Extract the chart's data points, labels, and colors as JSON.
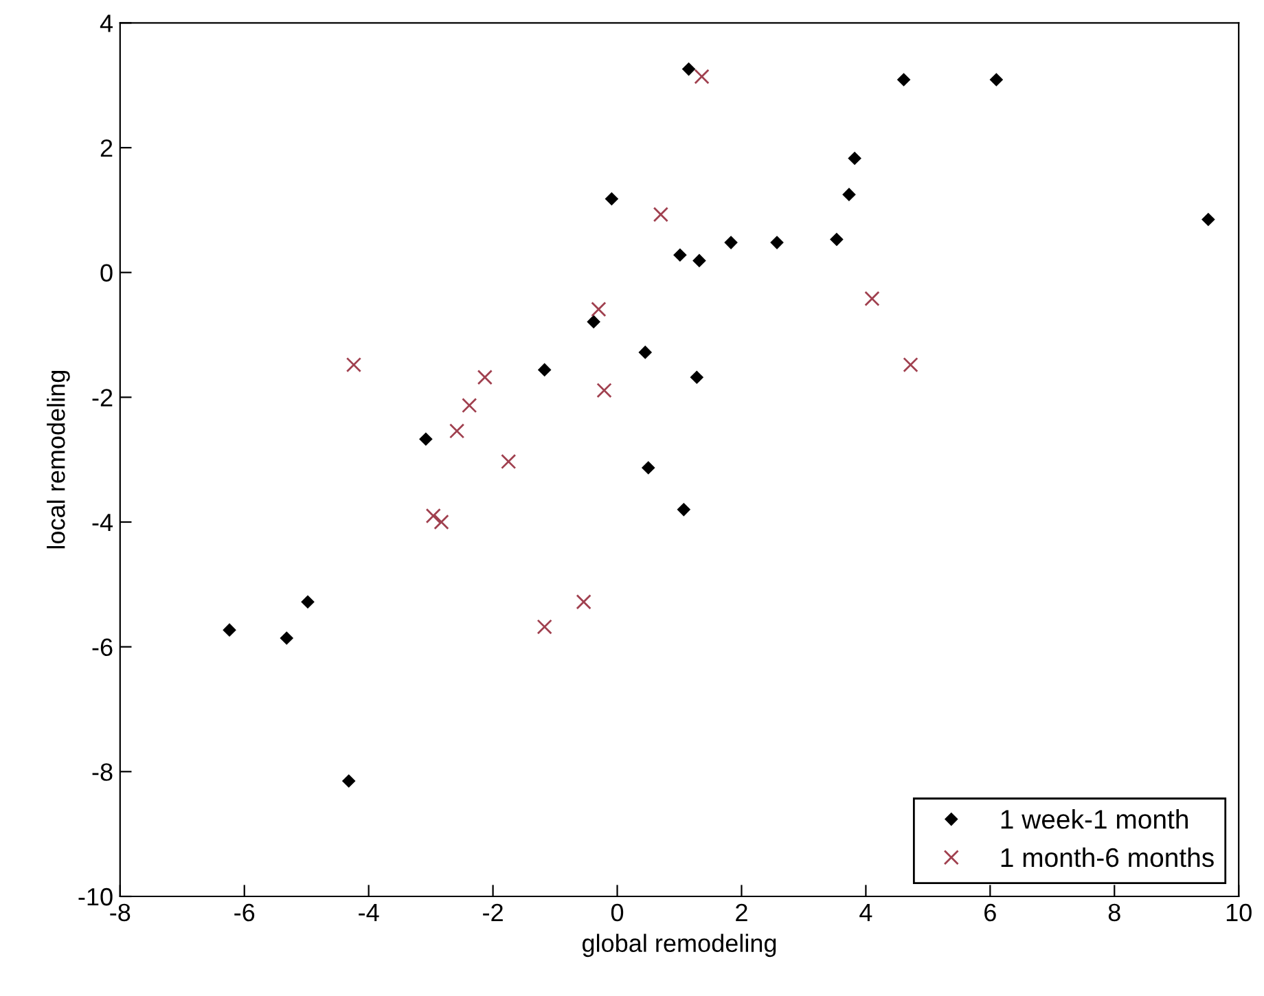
{
  "chart_data": {
    "type": "scatter",
    "xlabel": "global remodeling",
    "ylabel": "local remodeling",
    "xlim": [
      -8,
      10
    ],
    "ylim": [
      -10,
      4
    ],
    "xticks": [
      -8,
      -6,
      -4,
      -2,
      0,
      2,
      4,
      6,
      8,
      10
    ],
    "yticks": [
      -10,
      -8,
      -6,
      -4,
      -2,
      0,
      2,
      4
    ],
    "grid": false,
    "legend": "bottom right",
    "series": [
      {
        "name": "1 week-1 month",
        "color": "#000000",
        "marker": "diamond",
        "x": [
          -0.09,
          1.01,
          -0.38,
          -1.17,
          0.45,
          -3.08,
          0.5,
          1.15,
          4.61,
          6.1,
          3.82,
          3.73,
          9.51,
          1.32,
          1.83,
          2.57,
          3.53,
          1.28,
          1.07,
          -4.98,
          -6.24,
          -5.32,
          -4.32
        ],
        "values": [
          1.18,
          0.28,
          -0.79,
          -1.56,
          -1.28,
          -2.67,
          -3.13,
          3.26,
          3.09,
          3.09,
          1.83,
          1.25,
          0.85,
          0.19,
          0.48,
          0.48,
          0.53,
          -1.68,
          -3.8,
          -5.28,
          -5.73,
          -5.86,
          -8.15
        ]
      },
      {
        "name": "1 month-6 months",
        "color": "#a0404f",
        "marker": "cross",
        "x": [
          0.7,
          -0.3,
          -4.24,
          -2.13,
          -0.21,
          -2.38,
          -2.58,
          -1.75,
          1.36,
          4.1,
          4.72,
          -2.96,
          -2.83,
          -1.17,
          -0.54
        ],
        "values": [
          0.93,
          -0.59,
          -1.48,
          -1.68,
          -1.89,
          -2.13,
          -2.54,
          -3.03,
          3.14,
          -0.42,
          -1.48,
          -3.9,
          -4.0,
          -5.68,
          -5.28
        ]
      }
    ]
  }
}
